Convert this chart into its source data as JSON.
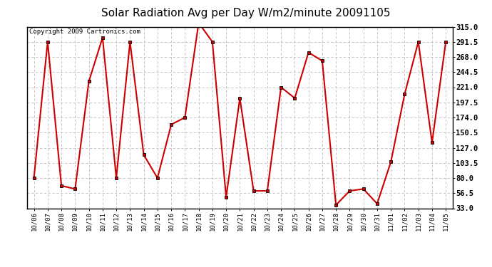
{
  "title": "Solar Radiation Avg per Day W/m2/minute 20091105",
  "copyright": "Copyright 2009 Cartronics.com",
  "labels": [
    "10/06",
    "10/07",
    "10/08",
    "10/09",
    "10/10",
    "10/11",
    "10/12",
    "10/13",
    "10/14",
    "10/15",
    "10/16",
    "10/17",
    "10/18",
    "10/19",
    "10/20",
    "10/21",
    "10/22",
    "10/23",
    "10/24",
    "10/25",
    "10/26",
    "10/27",
    "10/28",
    "10/29",
    "10/30",
    "10/31",
    "11/01",
    "11/02",
    "11/03",
    "11/04",
    "11/05"
  ],
  "values": [
    80,
    291.5,
    68,
    63,
    230,
    298,
    80,
    291.5,
    116,
    80,
    163,
    174,
    321,
    291.5,
    50,
    204,
    60,
    60,
    221,
    204,
    275,
    262,
    38,
    60,
    63,
    40,
    105,
    210,
    291.5,
    135,
    291.5
  ],
  "ylim": [
    33.0,
    315.0
  ],
  "yticks": [
    33.0,
    56.5,
    80.0,
    103.5,
    127.0,
    150.5,
    174.0,
    197.5,
    221.0,
    244.5,
    268.0,
    291.5,
    315.0
  ],
  "line_color": "#cc0000",
  "marker_color": "#cc0000",
  "bg_color": "#ffffff",
  "grid_color": "#bbbbbb",
  "title_fontsize": 11,
  "copyright_fontsize": 6.5
}
